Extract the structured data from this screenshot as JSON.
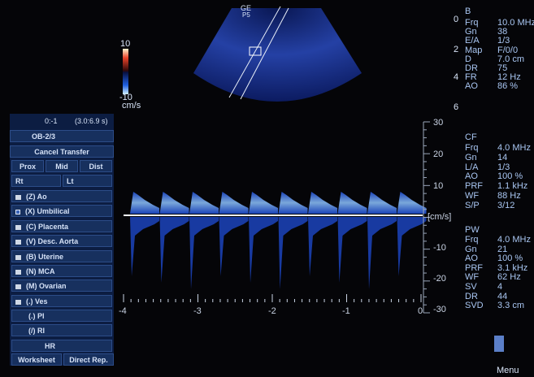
{
  "probe": {
    "brand": "GE",
    "model": "P5"
  },
  "color_bar": {
    "max": "10",
    "min": "-10",
    "unit": "cm/s"
  },
  "depth_scale": [
    "0",
    "2",
    "4",
    "6"
  ],
  "b_mode": {
    "title": "B",
    "params": [
      {
        "name": "Frq",
        "value": "10.0 MHz"
      },
      {
        "name": "Gn",
        "value": "38"
      },
      {
        "name": "E/A",
        "value": "1/3"
      },
      {
        "name": "Map",
        "value": "F/0/0"
      },
      {
        "name": "D",
        "value": "7.0 cm"
      },
      {
        "name": "DR",
        "value": "75"
      },
      {
        "name": "FR",
        "value": "12 Hz"
      },
      {
        "name": "AO",
        "value": "86 %"
      }
    ]
  },
  "cf_mode": {
    "title": "CF",
    "params": [
      {
        "name": "Frq",
        "value": "4.0 MHz"
      },
      {
        "name": "Gn",
        "value": "14"
      },
      {
        "name": "L/A",
        "value": "1/3"
      },
      {
        "name": "AO",
        "value": "100 %"
      },
      {
        "name": "PRF",
        "value": "1.1 kHz"
      },
      {
        "name": "WF",
        "value": "88 Hz"
      },
      {
        "name": "S/P",
        "value": "3/12"
      }
    ]
  },
  "pw_mode": {
    "title": "PW",
    "params": [
      {
        "name": "Frq",
        "value": "4.0 MHz"
      },
      {
        "name": "Gn",
        "value": "21"
      },
      {
        "name": "AO",
        "value": "100 %"
      },
      {
        "name": "PRF",
        "value": "3.1 kHz"
      },
      {
        "name": "WF",
        "value": "62 Hz"
      },
      {
        "name": "SV",
        "value": "4"
      },
      {
        "name": "DR",
        "value": "44"
      },
      {
        "name": "SVD",
        "value": "3.3 cm"
      }
    ]
  },
  "spectral": {
    "velocity_labels": [
      "30",
      "20",
      "10",
      "-10",
      "-20",
      "-30"
    ],
    "unit": "[cm/s]",
    "time_labels": [
      "-4",
      "-3",
      "-2",
      "-1",
      "0"
    ]
  },
  "left_panel": {
    "timer": "0:-1",
    "range": "(3.0:6.9 s)",
    "preset": "OB-2/3",
    "cancel": "Cancel Transfer",
    "positions": [
      "Prox",
      "Mid",
      "Dist"
    ],
    "sides": [
      "Rt",
      "Lt"
    ],
    "vessels": [
      {
        "label": "(Z) Ao",
        "selected": false
      },
      {
        "label": "(X) Umbilical",
        "selected": true
      },
      {
        "label": "(C) Placenta",
        "selected": false
      },
      {
        "label": "(V) Desc. Aorta",
        "selected": false
      },
      {
        "label": "(B) Uterine",
        "selected": false
      },
      {
        "label": "(N) MCA",
        "selected": false
      },
      {
        "label": "(M) Ovarian",
        "selected": false
      },
      {
        "label": "(.) Ves",
        "selected": false
      }
    ],
    "measurements": [
      "(.) PI",
      "(/) RI",
      "HR"
    ],
    "footer": [
      "Worksheet",
      "Direct Rep."
    ]
  },
  "menu": "Menu"
}
